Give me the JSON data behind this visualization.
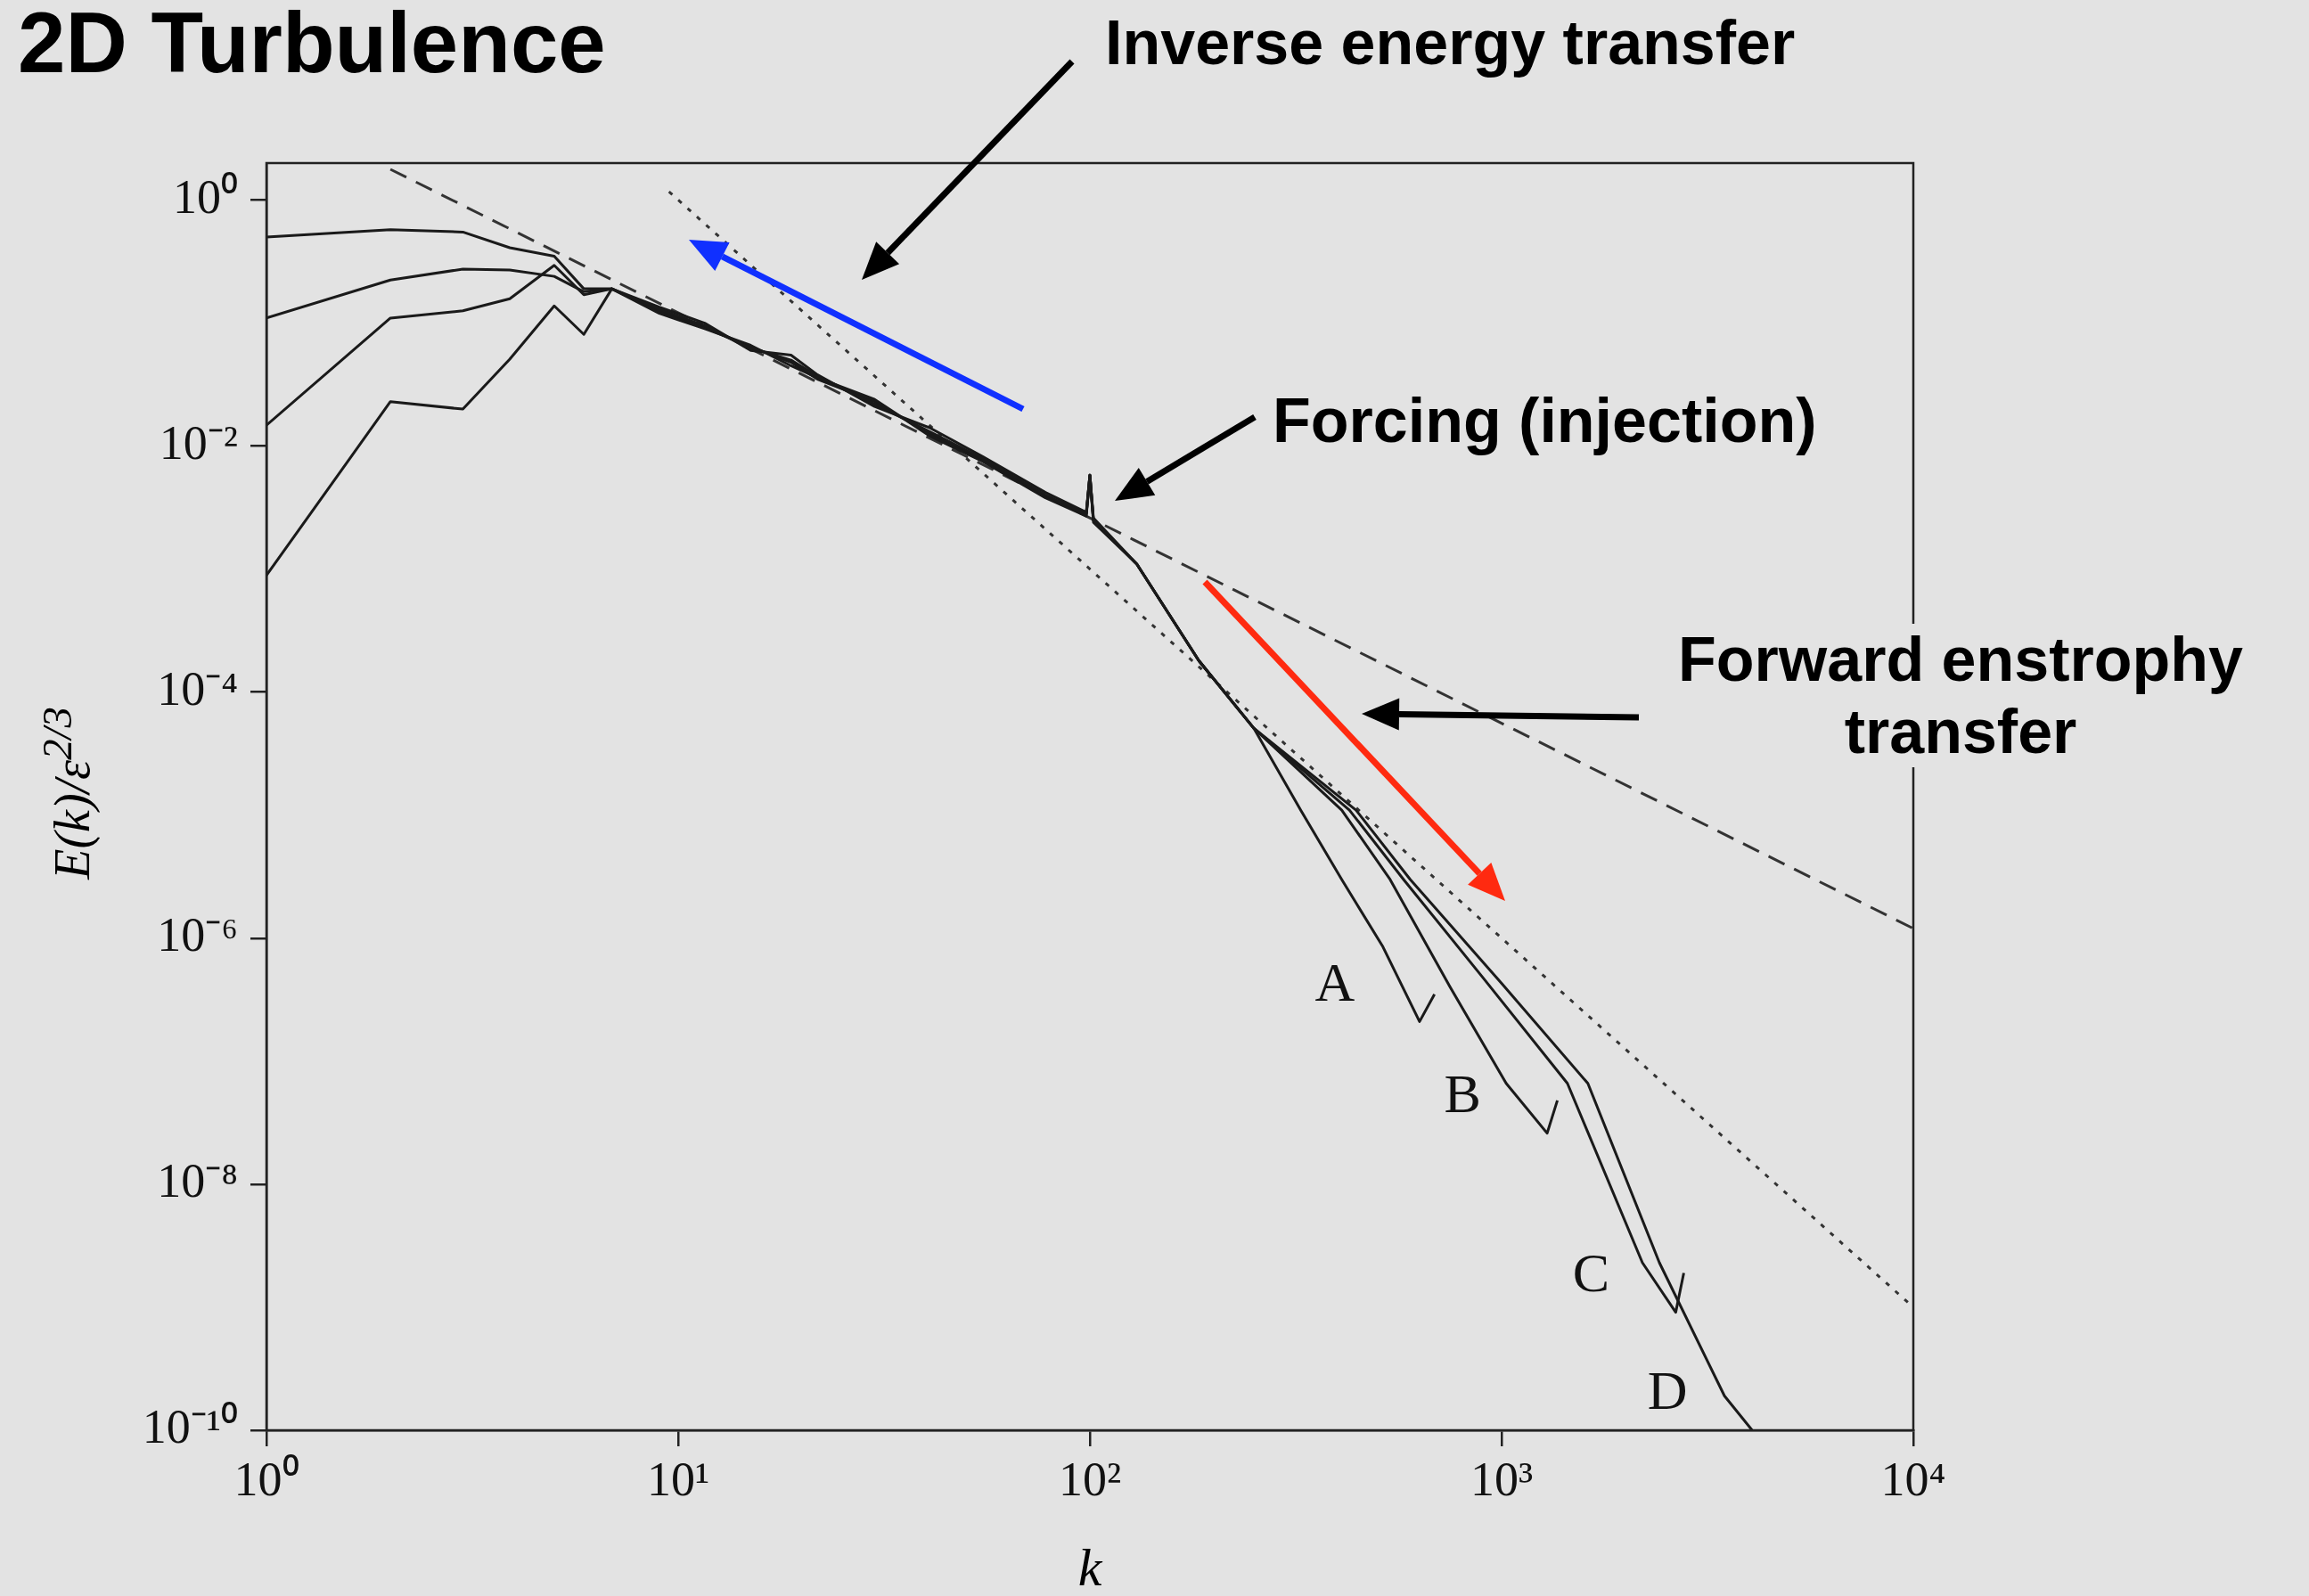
{
  "chart_data": {
    "type": "line",
    "title": "2D Turbulence",
    "xlabel": "k",
    "ylabel": "E(k)/ε$^{2/3}$",
    "annotations": [
      "Inverse energy transfer",
      "Forcing (injection)",
      "Forward enstrophy transfer"
    ],
    "marker": "none",
    "log": "xy",
    "xlim": [
      1,
      10000
    ],
    "xticks": [
      {
        "value": 1,
        "label": "10⁰"
      },
      {
        "value": 10,
        "label": "10¹"
      },
      {
        "value": 100,
        "label": "10²"
      },
      {
        "value": 1000,
        "label": "10³"
      },
      {
        "value": 10000,
        "label": "10⁴"
      }
    ],
    "ylim": [
      1e-10,
      2
    ],
    "yticks": [
      {
        "value": 1e-10,
        "label": "10⁻¹⁰"
      },
      {
        "value": 1e-08,
        "label": "10⁻⁸"
      },
      {
        "value": 1e-06,
        "label": "10⁻⁶"
      },
      {
        "value": 0.0001,
        "label": "10⁻⁴"
      },
      {
        "value": 0.01,
        "label": "10⁻²"
      },
      {
        "value": 1,
        "label": "10⁰"
      }
    ],
    "series": [
      {
        "name": "A",
        "color": "#1a1a1a",
        "line_style": "solid",
        "x": [
          1,
          2,
          3,
          3.9,
          5,
          5.9,
          6.9,
          9,
          11.6,
          15,
          18.8,
          21.8,
          30,
          41,
          55,
          78,
          98,
          100,
          102,
          130,
          184,
          250,
          325,
          409,
          515,
          632,
          687
        ],
        "values": [
          0.5,
          0.575,
          0.55,
          0.41,
          0.35,
          0.19,
          0.19,
          0.13,
          0.095,
          0.063,
          0.05,
          0.037,
          0.022,
          0.013,
          0.0079,
          0.004,
          0.0028,
          0.0058,
          0.0025,
          0.0011,
          0.00018,
          5.1e-05,
          1.1e-05,
          3e-06,
          8.5e-07,
          2.1e-07,
          3.5e-07
        ]
      },
      {
        "name": "B",
        "color": "#1a1a1a",
        "line_style": "solid",
        "x": [
          1,
          2,
          3,
          3.9,
          5,
          5.9,
          6.9,
          9,
          11.6,
          15,
          18.8,
          21.8,
          30,
          41,
          55,
          78,
          98,
          100,
          102,
          130,
          184,
          250,
          409,
          536,
          750,
          1026,
          1290,
          1366
        ],
        "values": [
          0.11,
          0.224,
          0.275,
          0.27,
          0.24,
          0.18,
          0.19,
          0.12,
          0.09,
          0.066,
          0.045,
          0.036,
          0.024,
          0.012,
          0.0075,
          0.0038,
          0.0027,
          0.0058,
          0.0024,
          0.0011,
          0.00018,
          5.1e-05,
          1.1e-05,
          3e-06,
          4e-07,
          6.6e-08,
          2.6e-08,
          4.8e-08
        ]
      },
      {
        "name": "C",
        "color": "#1a1a1a",
        "line_style": "solid",
        "x": [
          1,
          2,
          3,
          3.9,
          5,
          5.9,
          6.9,
          9,
          11.6,
          15,
          18.8,
          21.8,
          30,
          41,
          55,
          78,
          98,
          100,
          102,
          130,
          184,
          250,
          427,
          578,
          900,
          1445,
          2198,
          2648,
          2770
        ],
        "values": [
          0.0148,
          0.11,
          0.126,
          0.158,
          0.295,
          0.17,
          0.19,
          0.135,
          0.1,
          0.06,
          0.055,
          0.038,
          0.021,
          0.014,
          0.0082,
          0.0042,
          0.0029,
          0.0058,
          0.0026,
          0.0011,
          0.00018,
          5.1e-05,
          1.1e-05,
          3e-06,
          4.8e-07,
          6.6e-08,
          2.3e-09,
          9.1e-10,
          1.9e-09
        ]
      },
      {
        "name": "D",
        "color": "#1a1a1a",
        "line_style": "solid",
        "x": [
          1,
          2,
          3,
          3.9,
          5,
          5.9,
          6.9,
          9,
          11.6,
          15,
          18.8,
          21.8,
          30,
          41,
          55,
          78,
          98,
          100,
          102,
          130,
          184,
          250,
          443,
          600,
          1000,
          1620,
          2417,
          3478,
          4060
        ],
        "values": [
          0.00089,
          0.023,
          0.02,
          0.051,
          0.138,
          0.081,
          0.19,
          0.125,
          0.092,
          0.064,
          0.048,
          0.035,
          0.023,
          0.0125,
          0.0077,
          0.0039,
          0.0028,
          0.0058,
          0.0025,
          0.0011,
          0.00018,
          5.1e-05,
          1.1e-05,
          3e-06,
          4.3e-07,
          6.6e-08,
          2.3e-09,
          1.9e-10,
          1e-10
        ]
      },
      {
        "color": "#333333",
        "line_style": "dashed",
        "x": [
          2,
          10000
        ],
        "values": [
          1.78,
          1.2e-06
        ]
      },
      {
        "color": "#333333",
        "line_style": "dotted",
        "x": [
          9.5,
          10000
        ],
        "values": [
          1.17,
          1e-09
        ]
      }
    ]
  }
}
